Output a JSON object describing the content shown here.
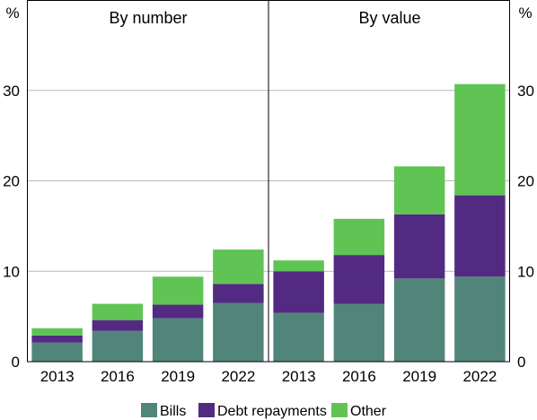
{
  "chart_data": {
    "type": "bar",
    "stacked": true,
    "unit": "%",
    "ylim": [
      0,
      40
    ],
    "yticks": [
      0,
      10,
      20,
      30
    ],
    "grid": true,
    "legend": {
      "placement": "bottom"
    },
    "colors": {
      "Bills": "#52857a",
      "Debt repayments": "#532a82",
      "Other": "#60c455"
    },
    "categories": [
      "2013",
      "2016",
      "2019",
      "2022"
    ],
    "panels": [
      {
        "title": "By number",
        "series": [
          {
            "name": "Bills",
            "values": [
              2.1,
              3.4,
              4.8,
              6.5
            ]
          },
          {
            "name": "Debt repayments",
            "values": [
              0.8,
              1.2,
              1.5,
              2.1
            ]
          },
          {
            "name": "Other",
            "values": [
              0.8,
              1.8,
              3.1,
              3.8
            ]
          }
        ]
      },
      {
        "title": "By value",
        "series": [
          {
            "name": "Bills",
            "values": [
              5.4,
              6.4,
              9.2,
              9.4
            ]
          },
          {
            "name": "Debt repayments",
            "values": [
              4.6,
              5.4,
              7.1,
              9.0
            ]
          },
          {
            "name": "Other",
            "values": [
              1.2,
              4.0,
              5.3,
              12.3
            ]
          }
        ]
      }
    ]
  }
}
